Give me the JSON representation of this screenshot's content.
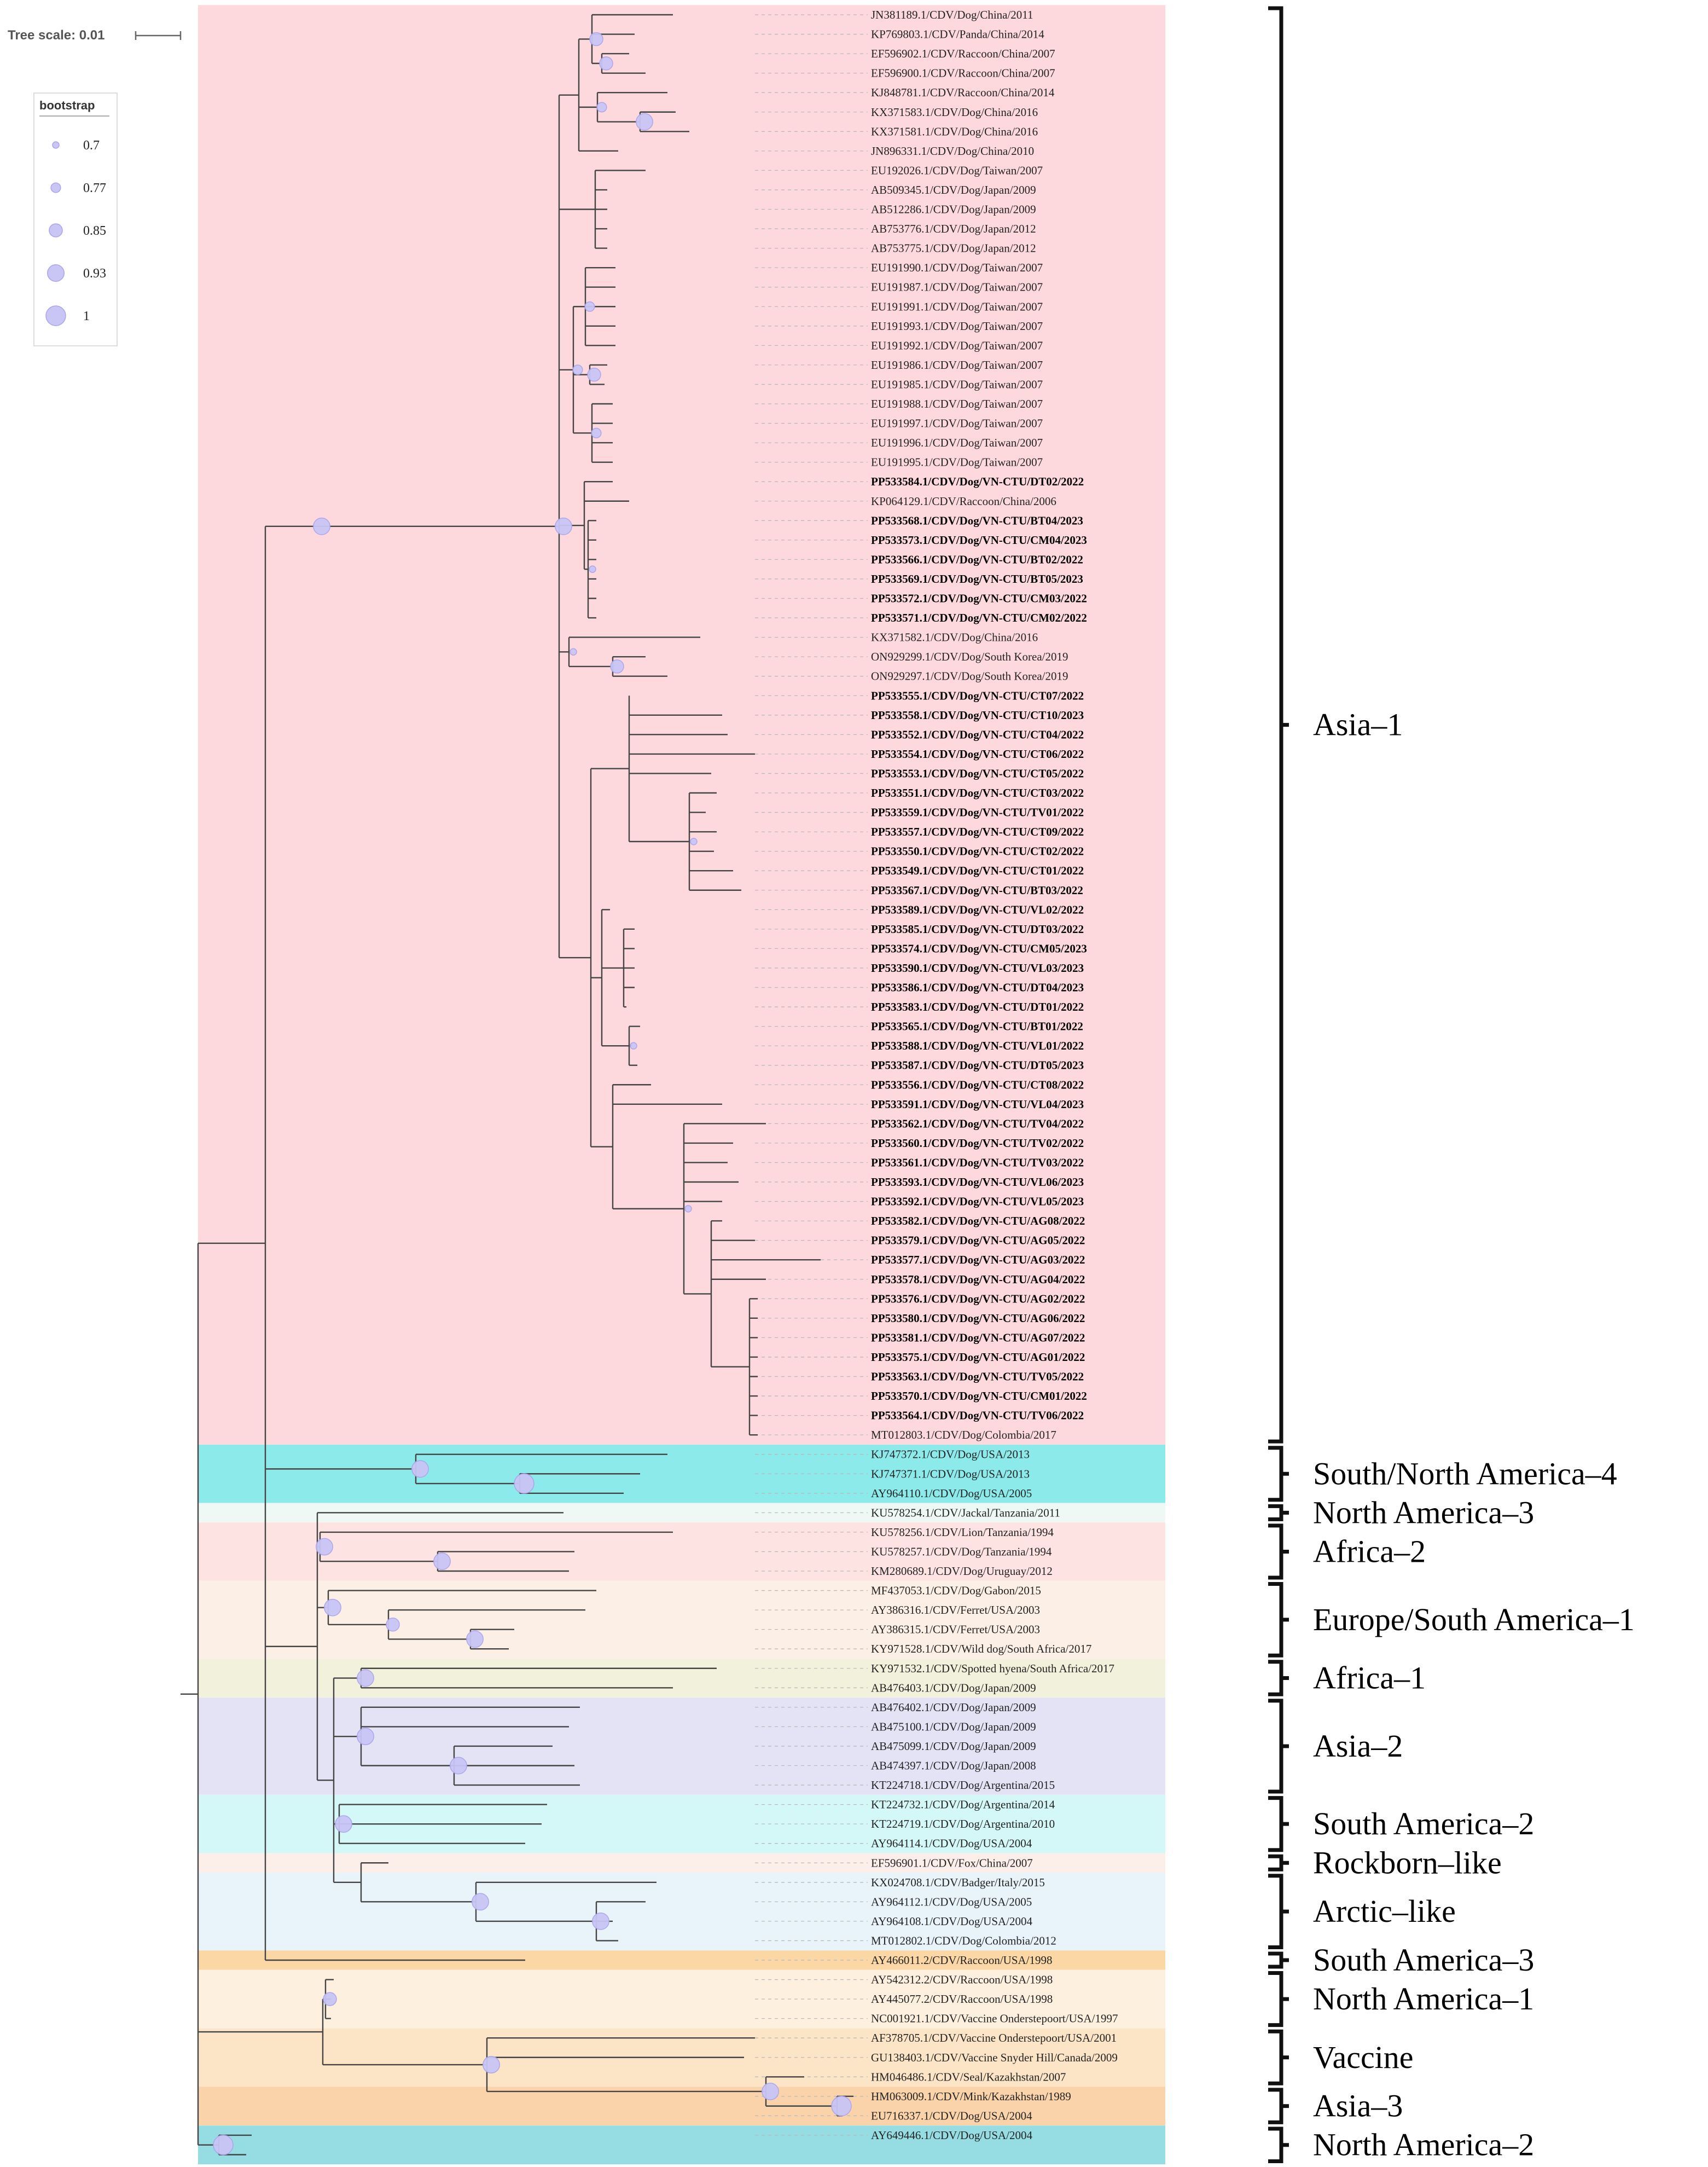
{
  "scale": {
    "label": "Tree scale: 0.01"
  },
  "legend": {
    "title": "bootstrap",
    "items": [
      {
        "label": "0.7",
        "value": 0.7
      },
      {
        "label": "0.77",
        "value": 0.77
      },
      {
        "label": "0.85",
        "value": 0.85
      },
      {
        "label": "0.93",
        "value": 0.93
      },
      {
        "label": "1",
        "value": 1
      }
    ]
  },
  "colors": {
    "asia1": "#fdd9dd",
    "sna4": "#8ceaea",
    "na3": "#eef9f6",
    "africa2": "#fde3e1",
    "europe_sa1": "#fcefe5",
    "africa1": "#f2f1dc",
    "asia2": "#e4e3f5",
    "sa2": "#d4f7f7",
    "rockborn": "#fcefe9",
    "arctic": "#e9f3fa",
    "sa3": "#fbd7a6",
    "na1": "#fdf0df",
    "vaccine": "#fce4c7",
    "asia3": "#fbd3aa",
    "na2": "#96dde3",
    "bubble": "#c9c5f5",
    "bubble_edge": "#aaa4ec",
    "branch": "#444444"
  },
  "leaves": [
    {
      "name": "JN381189.1/CDV/Dog/China/2011",
      "bold": false
    },
    {
      "name": "KP769803.1/CDV/Panda/China/2014",
      "bold": false
    },
    {
      "name": "EF596902.1/CDV/Raccoon/China/2007",
      "bold": false
    },
    {
      "name": "EF596900.1/CDV/Raccoon/China/2007",
      "bold": false
    },
    {
      "name": "KJ848781.1/CDV/Raccoon/China/2014",
      "bold": false
    },
    {
      "name": "KX371583.1/CDV/Dog/China/2016",
      "bold": false
    },
    {
      "name": "KX371581.1/CDV/Dog/China/2016",
      "bold": false
    },
    {
      "name": "JN896331.1/CDV/Dog/China/2010",
      "bold": false
    },
    {
      "name": "EU192026.1/CDV/Dog/Taiwan/2007",
      "bold": false
    },
    {
      "name": "AB509345.1/CDV/Dog/Japan/2009",
      "bold": false
    },
    {
      "name": "AB512286.1/CDV/Dog/Japan/2009",
      "bold": false
    },
    {
      "name": "AB753776.1/CDV/Dog/Japan/2012",
      "bold": false
    },
    {
      "name": "AB753775.1/CDV/Dog/Japan/2012",
      "bold": false
    },
    {
      "name": "EU191990.1/CDV/Dog/Taiwan/2007",
      "bold": false
    },
    {
      "name": "EU191987.1/CDV/Dog/Taiwan/2007",
      "bold": false
    },
    {
      "name": "EU191991.1/CDV/Dog/Taiwan/2007",
      "bold": false
    },
    {
      "name": "EU191993.1/CDV/Dog/Taiwan/2007",
      "bold": false
    },
    {
      "name": "EU191992.1/CDV/Dog/Taiwan/2007",
      "bold": false
    },
    {
      "name": "EU191986.1/CDV/Dog/Taiwan/2007",
      "bold": false
    },
    {
      "name": "EU191985.1/CDV/Dog/Taiwan/2007",
      "bold": false
    },
    {
      "name": "EU191988.1/CDV/Dog/Taiwan/2007",
      "bold": false
    },
    {
      "name": "EU191997.1/CDV/Dog/Taiwan/2007",
      "bold": false
    },
    {
      "name": "EU191996.1/CDV/Dog/Taiwan/2007",
      "bold": false
    },
    {
      "name": "EU191995.1/CDV/Dog/Taiwan/2007",
      "bold": false
    },
    {
      "name": "PP533584.1/CDV/Dog/VN-CTU/DT02/2022",
      "bold": true
    },
    {
      "name": "KP064129.1/CDV/Raccoon/China/2006",
      "bold": false
    },
    {
      "name": "PP533568.1/CDV/Dog/VN-CTU/BT04/2023",
      "bold": true
    },
    {
      "name": "PP533573.1/CDV/Dog/VN-CTU/CM04/2023",
      "bold": true
    },
    {
      "name": "PP533566.1/CDV/Dog/VN-CTU/BT02/2022",
      "bold": true
    },
    {
      "name": "PP533569.1/CDV/Dog/VN-CTU/BT05/2023",
      "bold": true
    },
    {
      "name": "PP533572.1/CDV/Dog/VN-CTU/CM03/2022",
      "bold": true
    },
    {
      "name": "PP533571.1/CDV/Dog/VN-CTU/CM02/2022",
      "bold": true
    },
    {
      "name": "KX371582.1/CDV/Dog/China/2016",
      "bold": false
    },
    {
      "name": "ON929299.1/CDV/Dog/South Korea/2019",
      "bold": false
    },
    {
      "name": "ON929297.1/CDV/Dog/South Korea/2019",
      "bold": false
    },
    {
      "name": "PP533555.1/CDV/Dog/VN-CTU/CT07/2022",
      "bold": true
    },
    {
      "name": "PP533558.1/CDV/Dog/VN-CTU/CT10/2023",
      "bold": true
    },
    {
      "name": "PP533552.1/CDV/Dog/VN-CTU/CT04/2022",
      "bold": true
    },
    {
      "name": "PP533554.1/CDV/Dog/VN-CTU/CT06/2022",
      "bold": true
    },
    {
      "name": "PP533553.1/CDV/Dog/VN-CTU/CT05/2022",
      "bold": true
    },
    {
      "name": "PP533551.1/CDV/Dog/VN-CTU/CT03/2022",
      "bold": true
    },
    {
      "name": "PP533559.1/CDV/Dog/VN-CTU/TV01/2022",
      "bold": true
    },
    {
      "name": "PP533557.1/CDV/Dog/VN-CTU/CT09/2022",
      "bold": true
    },
    {
      "name": "PP533550.1/CDV/Dog/VN-CTU/CT02/2022",
      "bold": true
    },
    {
      "name": "PP533549.1/CDV/Dog/VN-CTU/CT01/2022",
      "bold": true
    },
    {
      "name": "PP533567.1/CDV/Dog/VN-CTU/BT03/2022",
      "bold": true
    },
    {
      "name": "PP533589.1/CDV/Dog/VN-CTU/VL02/2022",
      "bold": true
    },
    {
      "name": "PP533585.1/CDV/Dog/VN-CTU/DT03/2022",
      "bold": true
    },
    {
      "name": "PP533574.1/CDV/Dog/VN-CTU/CM05/2023",
      "bold": true
    },
    {
      "name": "PP533590.1/CDV/Dog/VN-CTU/VL03/2023",
      "bold": true
    },
    {
      "name": "PP533586.1/CDV/Dog/VN-CTU/DT04/2023",
      "bold": true
    },
    {
      "name": "PP533583.1/CDV/Dog/VN-CTU/DT01/2022",
      "bold": true
    },
    {
      "name": "PP533565.1/CDV/Dog/VN-CTU/BT01/2022",
      "bold": true
    },
    {
      "name": "PP533588.1/CDV/Dog/VN-CTU/VL01/2022",
      "bold": true
    },
    {
      "name": "PP533587.1/CDV/Dog/VN-CTU/DT05/2023",
      "bold": true
    },
    {
      "name": "PP533556.1/CDV/Dog/VN-CTU/CT08/2022",
      "bold": true
    },
    {
      "name": "PP533591.1/CDV/Dog/VN-CTU/VL04/2023",
      "bold": true
    },
    {
      "name": "PP533562.1/CDV/Dog/VN-CTU/TV04/2022",
      "bold": true
    },
    {
      "name": "PP533560.1/CDV/Dog/VN-CTU/TV02/2022",
      "bold": true
    },
    {
      "name": "PP533561.1/CDV/Dog/VN-CTU/TV03/2022",
      "bold": true
    },
    {
      "name": "PP533593.1/CDV/Dog/VN-CTU/VL06/2023",
      "bold": true
    },
    {
      "name": "PP533592.1/CDV/Dog/VN-CTU/VL05/2023",
      "bold": true
    },
    {
      "name": "PP533582.1/CDV/Dog/VN-CTU/AG08/2022",
      "bold": true
    },
    {
      "name": "PP533579.1/CDV/Dog/VN-CTU/AG05/2022",
      "bold": true
    },
    {
      "name": "PP533577.1/CDV/Dog/VN-CTU/AG03/2022",
      "bold": true
    },
    {
      "name": "PP533578.1/CDV/Dog/VN-CTU/AG04/2022",
      "bold": true
    },
    {
      "name": "PP533576.1/CDV/Dog/VN-CTU/AG02/2022",
      "bold": true
    },
    {
      "name": "PP533580.1/CDV/Dog/VN-CTU/AG06/2022",
      "bold": true
    },
    {
      "name": "PP533581.1/CDV/Dog/VN-CTU/AG07/2022",
      "bold": true
    },
    {
      "name": "PP533575.1/CDV/Dog/VN-CTU/AG01/2022",
      "bold": true
    },
    {
      "name": "PP533563.1/CDV/Dog/VN-CTU/TV05/2022",
      "bold": true
    },
    {
      "name": "PP533570.1/CDV/Dog/VN-CTU/CM01/2022",
      "bold": true
    },
    {
      "name": "PP533564.1/CDV/Dog/VN-CTU/TV06/2022",
      "bold": true
    },
    {
      "name": "MT012803.1/CDV/Dog/Colombia/2017",
      "bold": false
    },
    {
      "name": "KJ747372.1/CDV/Dog/USA/2013",
      "bold": false
    },
    {
      "name": "KJ747371.1/CDV/Dog/USA/2013",
      "bold": false
    },
    {
      "name": "AY964110.1/CDV/Dog/USA/2005",
      "bold": false
    },
    {
      "name": "KU578254.1/CDV/Jackal/Tanzania/2011",
      "bold": false
    },
    {
      "name": "KU578256.1/CDV/Lion/Tanzania/1994",
      "bold": false
    },
    {
      "name": "KU578257.1/CDV/Dog/Tanzania/1994",
      "bold": false
    },
    {
      "name": "KM280689.1/CDV/Dog/Uruguay/2012",
      "bold": false
    },
    {
      "name": "MF437053.1/CDV/Dog/Gabon/2015",
      "bold": false
    },
    {
      "name": "AY386316.1/CDV/Ferret/USA/2003",
      "bold": false
    },
    {
      "name": "AY386315.1/CDV/Ferret/USA/2003",
      "bold": false
    },
    {
      "name": "KY971528.1/CDV/Wild dog/South Africa/2017",
      "bold": false
    },
    {
      "name": "KY971532.1/CDV/Spotted hyena/South Africa/2017",
      "bold": false
    },
    {
      "name": "AB476403.1/CDV/Dog/Japan/2009",
      "bold": false
    },
    {
      "name": "AB476402.1/CDV/Dog/Japan/2009",
      "bold": false
    },
    {
      "name": "AB475100.1/CDV/Dog/Japan/2009",
      "bold": false
    },
    {
      "name": "AB475099.1/CDV/Dog/Japan/2009",
      "bold": false
    },
    {
      "name": "AB474397.1/CDV/Dog/Japan/2008",
      "bold": false
    },
    {
      "name": "KT224718.1/CDV/Dog/Argentina/2015",
      "bold": false
    },
    {
      "name": "KT224732.1/CDV/Dog/Argentina/2014",
      "bold": false
    },
    {
      "name": "KT224719.1/CDV/Dog/Argentina/2010",
      "bold": false
    },
    {
      "name": "AY964114.1/CDV/Dog/USA/2004",
      "bold": false
    },
    {
      "name": "EF596901.1/CDV/Fox/China/2007",
      "bold": false
    },
    {
      "name": "KX024708.1/CDV/Badger/Italy/2015",
      "bold": false
    },
    {
      "name": "AY964112.1/CDV/Dog/USA/2005",
      "bold": false
    },
    {
      "name": "AY964108.1/CDV/Dog/USA/2004",
      "bold": false
    },
    {
      "name": "MT012802.1/CDV/Dog/Colombia/2012",
      "bold": false
    },
    {
      "name": "AY466011.2/CDV/Raccoon/USA/1998",
      "bold": false
    },
    {
      "name": "AY542312.2/CDV/Raccoon/USA/1998",
      "bold": false
    },
    {
      "name": "AY445077.2/CDV/Raccoon/USA/1998",
      "bold": false
    },
    {
      "name": "NC001921.1/CDV/Vaccine Onderstepoort/USA/1997",
      "bold": false
    },
    {
      "name": "AF378705.1/CDV/Vaccine Onderstepoort/USA/2001",
      "bold": false
    },
    {
      "name": "GU138403.1/CDV/Vaccine Snyder Hill/Canada/2009",
      "bold": false
    },
    {
      "name": "HM046486.1/CDV/Seal/Kazakhstan/2007",
      "bold": false
    },
    {
      "name": "HM063009.1/CDV/Mink/Kazakhstan/1989",
      "bold": false
    },
    {
      "name": "EU716337.1/CDV/Dog/USA/2004",
      "bold": false
    },
    {
      "name": "AY649446.1/CDV/Dog/USA/2004",
      "bold": false
    }
  ],
  "clades": [
    {
      "label": "Asia–1",
      "first": 0,
      "last": 73,
      "color": "asia1"
    },
    {
      "label": "South/North America–4",
      "first": 74,
      "last": 76,
      "color": "sna4"
    },
    {
      "label": "North America–3",
      "first": 77,
      "last": 77,
      "color": "na3"
    },
    {
      "label": "Africa–2",
      "first": 78,
      "last": 80,
      "color": "africa2"
    },
    {
      "label": "Europe/South America–1",
      "first": 81,
      "last": 84,
      "color": "europe_sa1"
    },
    {
      "label": "Africa–1",
      "first": 85,
      "last": 86,
      "color": "africa1"
    },
    {
      "label": "Asia–2",
      "first": 87,
      "last": 91,
      "color": "asia2"
    },
    {
      "label": "South America–2",
      "first": 92,
      "last": 94,
      "color": "sa2"
    },
    {
      "label": "Rockborn–like",
      "first": 95,
      "last": 95,
      "color": "rockborn"
    },
    {
      "label": "Arctic–like",
      "first": 96,
      "last": 99,
      "color": "arctic"
    },
    {
      "label": "South America–3",
      "first": 100,
      "last": 100,
      "color": "sa3"
    },
    {
      "label": "North America–1",
      "first": 101,
      "last": 103,
      "color": "na1"
    },
    {
      "label": "Vaccine",
      "first": 104,
      "last": 106,
      "color": "vaccine"
    },
    {
      "label": "Asia–3",
      "first": 107,
      "last": 108,
      "color": "asia3"
    },
    {
      "label": "North America–2",
      "first": 109,
      "last": 110,
      "color": "na2"
    }
  ]
}
